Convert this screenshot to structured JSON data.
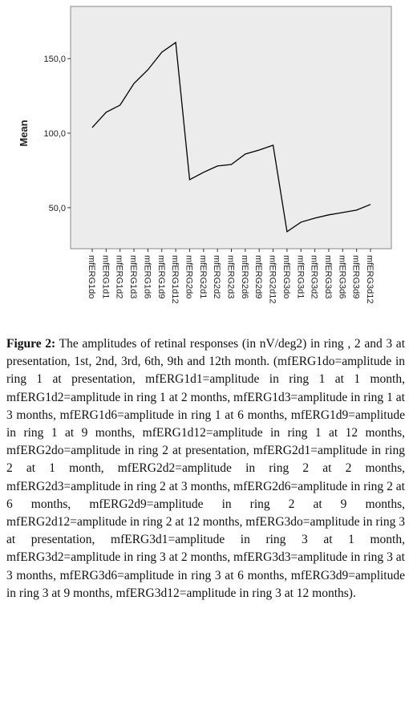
{
  "chart_data": {
    "type": "line",
    "y_label": "Mean",
    "categories": [
      "mfERG1do",
      "mfERG1d1",
      "mfERG1d2",
      "mfERG1d3",
      "mfERG1d6",
      "mfERG1d9",
      "mfERG1d12",
      "mfERG2do",
      "mfERG2d1",
      "mfERG2d2",
      "mfERG2d3",
      "mfERG2d6",
      "mfERG2d9",
      "mfERG2d12",
      "mfERG3do",
      "mfERG3d1",
      "mfERG3d2",
      "mfERG3d3",
      "mfERG3d6",
      "mfERG3d9",
      "mfERG3d12"
    ],
    "values": [
      103.8,
      114,
      118.8,
      133.3,
      142.5,
      154.3,
      160.8,
      68.8,
      73.7,
      78,
      79,
      86,
      88.7,
      91.9,
      33.9,
      40.3,
      43,
      45.2,
      46.8,
      48.4,
      52.2
    ],
    "color": "#000000",
    "ylim": [
      22.5,
      185
    ],
    "yticks": [
      {
        "value": 50,
        "label": "50,0"
      },
      {
        "value": 100,
        "label": "100,0"
      },
      {
        "value": 150,
        "label": "150,0"
      }
    ]
  },
  "caption": {
    "label": "Figure 2:",
    "text": "The amplitudes of retinal responses (in nV/deg2) in ring , 2 and 3 at presentation, 1st, 2nd, 3rd, 6th, 9th and 12th month. (mfERG1do=amplitude in ring 1 at presentation, mfERG1d1=amplitude in ring 1 at 1 month, mfERG1d2=amplitude in ring 1 at 2 months, mfERG1d3=amplitude in ring 1 at 3 months, mfERG1d6=amplitude in ring 1 at 6 months, mfERG1d9=amplitude in ring 1 at 9 months, mfERG1d12=amplitude in ring 1 at 12 months, mfERG2do=amplitude in ring 2 at presentation, mfERG2d1=amplitude in ring 2 at 1 month, mfERG2d2=amplitude in ring 2 at 2 months, mfERG2d3=amplitude in ring 2 at 3 months, mfERG2d6=amplitude in ring 2 at 6 months, mfERG2d9=amplitude in ring 2 at 9 months, mfERG2d12=amplitude in ring 2 at 12 months, mfERG3do=amplitude in ring 3 at presentation, mfERG3d1=amplitude in ring 3 at 1 month, mfERG3d2=amplitude in ring 3 at 2 months, mfERG3d3=amplitude in ring 3 at 3 months, mfERG3d6=amplitude in ring 3 at 6 months, mfERG3d9=amplitude in ring 3 at 9 months, mfERG3d12=amplitude in ring 3 at 12 months)."
  }
}
